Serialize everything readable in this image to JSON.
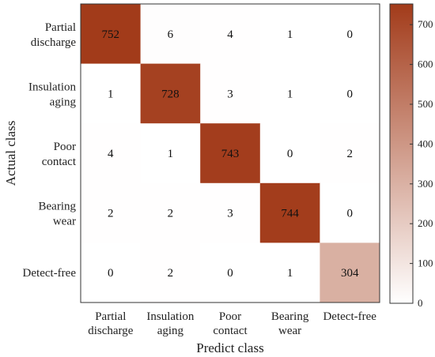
{
  "chart_data": {
    "type": "heatmap",
    "xlabel": "Predict class",
    "ylabel": "Actual class",
    "x_categories": [
      [
        "Partial",
        "discharge"
      ],
      [
        "Insulation",
        "aging"
      ],
      [
        "Poor",
        "contact"
      ],
      [
        "Bearing",
        "wear"
      ],
      [
        "Detect-free"
      ]
    ],
    "y_categories": [
      [
        "Partial",
        "discharge"
      ],
      [
        "Insulation",
        "aging"
      ],
      [
        "Poor",
        "contact"
      ],
      [
        "Bearing",
        "wear"
      ],
      [
        "Detect-free"
      ]
    ],
    "matrix": [
      [
        752,
        6,
        4,
        1,
        0
      ],
      [
        1,
        728,
        3,
        1,
        0
      ],
      [
        4,
        1,
        743,
        0,
        2
      ],
      [
        2,
        2,
        3,
        744,
        0
      ],
      [
        0,
        2,
        0,
        1,
        304
      ]
    ],
    "colorbar": {
      "min": 0,
      "max": 752,
      "ticks": [
        0,
        100,
        200,
        300,
        400,
        500,
        600,
        700
      ],
      "color_low": "#ffffff",
      "color_high": "#a23b1a"
    },
    "grid": false
  }
}
